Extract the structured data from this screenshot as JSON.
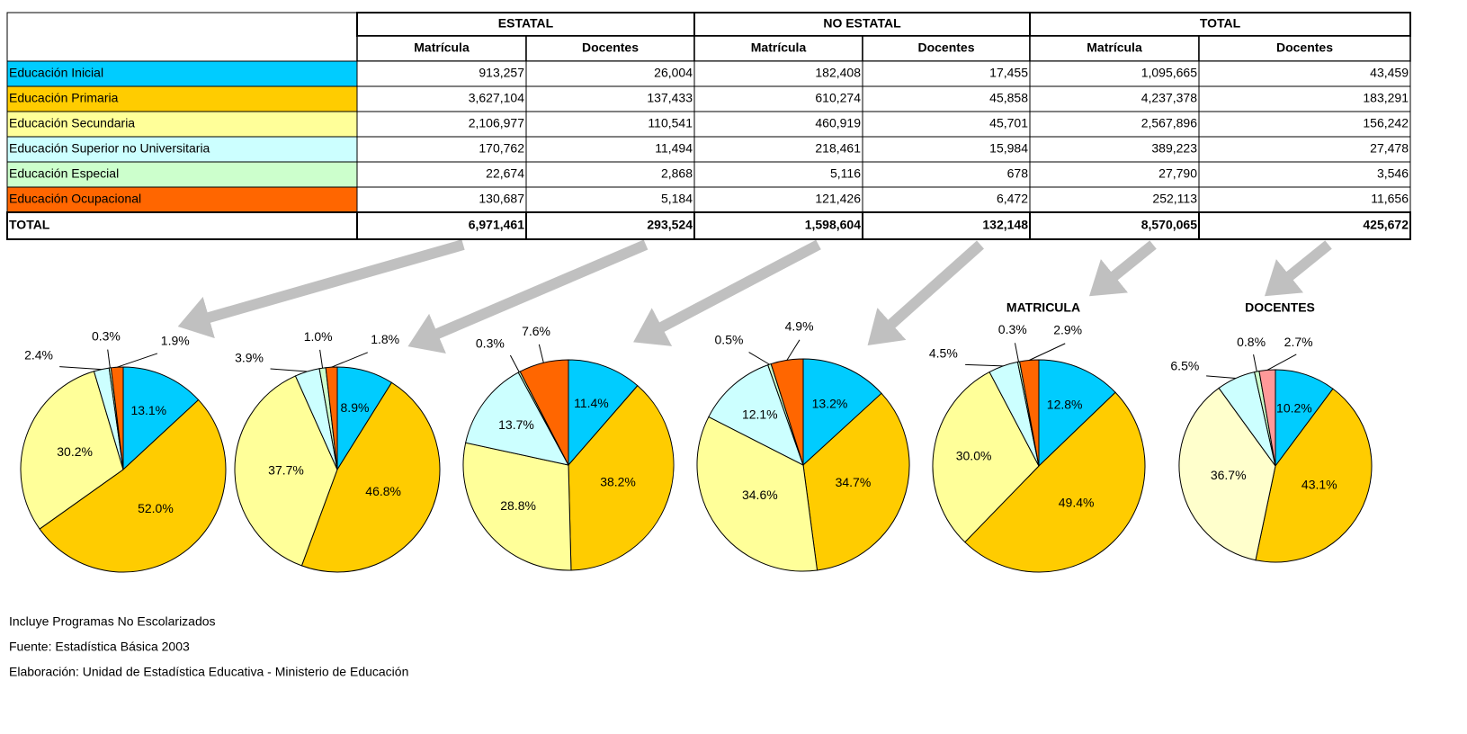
{
  "table": {
    "groups": [
      "ESTATAL",
      "NO ESTATAL",
      "TOTAL"
    ],
    "subheaders": [
      "Matrícula",
      "Docentes",
      "Matrícula",
      "Docentes",
      "Matrícula",
      "Docentes"
    ],
    "rows": [
      {
        "label": "Educación Inicial",
        "color": "#00ccff",
        "values": [
          "913,257",
          "26,004",
          "182,408",
          "17,455",
          "1,095,665",
          "43,459"
        ]
      },
      {
        "label": "Educación Primaria",
        "color": "#ffcc00",
        "values": [
          "3,627,104",
          "137,433",
          "610,274",
          "45,858",
          "4,237,378",
          "183,291"
        ]
      },
      {
        "label": "Educación Secundaria",
        "color": "#ffff99",
        "values": [
          "2,106,977",
          "110,541",
          "460,919",
          "45,701",
          "2,567,896",
          "156,242"
        ]
      },
      {
        "label": "Educación Superior no Universitaria",
        "color": "#ccffff",
        "values": [
          "170,762",
          "11,494",
          "218,461",
          "15,984",
          "389,223",
          "27,478"
        ]
      },
      {
        "label": "Educación Especial",
        "color": "#ccffcc",
        "values": [
          "22,674",
          "2,868",
          "5,116",
          "678",
          "27,790",
          "3,546"
        ]
      },
      {
        "label": "Educación Ocupacional",
        "color": "#ff6600",
        "values": [
          "130,687",
          "5,184",
          "121,426",
          "6,472",
          "252,113",
          "11,656"
        ]
      },
      {
        "label": "TOTAL",
        "values": [
          "6,971,461",
          "293,524",
          "1,598,604",
          "132,148",
          "8,570,065",
          "425,672"
        ]
      }
    ]
  },
  "chart_data": [
    {
      "type": "pie",
      "values": [
        13.1,
        52.0,
        30.2,
        2.4,
        0.3,
        1.9
      ],
      "value_labels": [
        "13.1%",
        "52.0%",
        "30.2%",
        "2.4%",
        "0.3%",
        "1.9%"
      ],
      "colors": [
        "#00ccff",
        "#ffcc00",
        "#ffff99",
        "#ccffff",
        "#ccffcc",
        "#ff6600"
      ]
    },
    {
      "type": "pie",
      "values": [
        8.9,
        46.8,
        37.7,
        3.9,
        1.0,
        1.8
      ],
      "value_labels": [
        "8.9%",
        "46.8%",
        "37.7%",
        "3.9%",
        "1.0%",
        "1.8%"
      ],
      "colors": [
        "#00ccff",
        "#ffcc00",
        "#ffff99",
        "#ccffff",
        "#ccffcc",
        "#ff6600"
      ]
    },
    {
      "type": "pie",
      "values": [
        11.4,
        38.2,
        28.8,
        13.7,
        0.3,
        7.6
      ],
      "value_labels": [
        "11.4%",
        "38.2%",
        "28.8%",
        "13.7%",
        "0.3%",
        "7.6%"
      ],
      "colors": [
        "#00ccff",
        "#ffcc00",
        "#ffff99",
        "#ccffff",
        "#ccffcc",
        "#ff6600"
      ]
    },
    {
      "type": "pie",
      "values": [
        13.2,
        34.7,
        34.6,
        12.1,
        0.5,
        4.9
      ],
      "value_labels": [
        "13.2%",
        "34.7%",
        "34.6%",
        "12.1%",
        "0.5%",
        "4.9%"
      ],
      "colors": [
        "#00ccff",
        "#ffcc00",
        "#ffff99",
        "#ccffff",
        "#ccffcc",
        "#ff6600"
      ]
    },
    {
      "type": "pie",
      "title": "MATRICULA",
      "values": [
        12.8,
        49.4,
        30.0,
        4.5,
        0.3,
        2.9
      ],
      "value_labels": [
        "12.8%",
        "49.4%",
        "30.0%",
        "4.5%",
        "0.3%",
        "2.9%"
      ],
      "colors": [
        "#00ccff",
        "#ffcc00",
        "#ffff99",
        "#ccffff",
        "#ccffcc",
        "#ff6600"
      ]
    },
    {
      "type": "pie",
      "title": "DOCENTES",
      "values": [
        10.2,
        43.1,
        36.7,
        6.5,
        0.8,
        2.7
      ],
      "value_labels": [
        "10.2%",
        "43.1%",
        "36.7%",
        "6.5%",
        "0.8%",
        "2.7%"
      ],
      "colors": [
        "#00ccff",
        "#ffcc00",
        "#ffffcc",
        "#ccffff",
        "#ccffcc",
        "#ff9999"
      ]
    }
  ],
  "notes": [
    "Incluye Programas No Escolarizados",
    "Fuente: Estadística Básica 2003",
    "Elaboración: Unidad de Estadística Educativa - Ministerio de Educación"
  ]
}
